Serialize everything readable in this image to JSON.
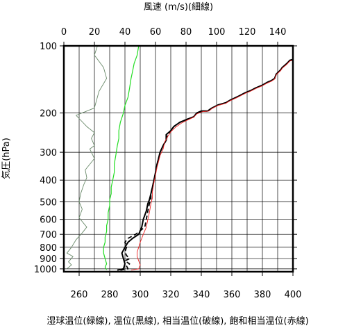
{
  "chart_data": {
    "type": "line",
    "title_top": "風速 (m/s)(細線)",
    "xlabel": "湿球温位(緑線), 温位(黒線), 相当温位(破線), 飽和相当温位(赤線)",
    "ylabel": "気圧(hPa)",
    "y_scale": "log",
    "ylim": [
      1030,
      100
    ],
    "y_ticks": [
      100,
      200,
      300,
      400,
      500,
      600,
      700,
      800,
      900,
      1000
    ],
    "x_theta_lim": [
      250,
      400
    ],
    "x_theta_ticks": [
      260,
      280,
      300,
      320,
      340,
      360,
      380,
      400
    ],
    "x_wind_lim": [
      0,
      150
    ],
    "x_wind_ticks": [
      0,
      20,
      40,
      60,
      80,
      100,
      120,
      140
    ],
    "grid": true,
    "series": [
      {
        "name": "風速",
        "axis": "wind",
        "color": "#6a8a6a",
        "style": "solid-thin",
        "points": [
          [
            2,
            1000
          ],
          [
            5,
            960
          ],
          [
            3,
            930
          ],
          [
            6,
            880
          ],
          [
            2,
            850
          ],
          [
            5,
            800
          ],
          [
            8,
            740
          ],
          [
            12,
            690
          ],
          [
            15,
            650
          ],
          [
            10,
            590
          ],
          [
            12,
            540
          ],
          [
            10,
            500
          ],
          [
            11,
            460
          ],
          [
            13,
            420
          ],
          [
            15,
            390
          ],
          [
            14,
            360
          ],
          [
            20,
            320
          ],
          [
            17,
            290
          ],
          [
            20,
            280
          ],
          [
            18,
            260
          ],
          [
            20,
            245
          ],
          [
            15,
            230
          ],
          [
            8,
            205
          ],
          [
            20,
            190
          ],
          [
            23,
            160
          ],
          [
            28,
            140
          ],
          [
            26,
            125
          ],
          [
            20,
            110
          ],
          [
            22,
            100
          ]
        ]
      },
      {
        "name": "湿球温位",
        "axis": "theta",
        "color": "#22dd22",
        "style": "solid",
        "points": [
          [
            278,
            1010
          ],
          [
            277,
            980
          ],
          [
            278,
            950
          ],
          [
            277,
            900
          ],
          [
            276,
            850
          ],
          [
            276,
            800
          ],
          [
            277,
            760
          ],
          [
            277,
            720
          ],
          [
            278,
            680
          ],
          [
            278,
            640
          ],
          [
            279,
            600
          ],
          [
            279,
            560
          ],
          [
            280,
            520
          ],
          [
            280,
            490
          ],
          [
            281,
            460
          ],
          [
            281,
            430
          ],
          [
            282,
            400
          ],
          [
            283,
            370
          ],
          [
            283,
            340
          ],
          [
            284,
            310
          ],
          [
            285,
            280
          ],
          [
            286,
            260
          ],
          [
            286,
            240
          ],
          [
            287,
            220
          ],
          [
            289,
            200
          ],
          [
            290,
            185
          ],
          [
            292,
            170
          ],
          [
            293,
            155
          ],
          [
            294,
            140
          ],
          [
            295,
            130
          ],
          [
            296,
            120
          ],
          [
            298,
            110
          ],
          [
            299,
            100
          ]
        ]
      },
      {
        "name": "温位",
        "axis": "theta",
        "color": "#000000",
        "style": "solid-thick",
        "points": [
          [
            285,
            1013
          ],
          [
            289,
            1000
          ],
          [
            290,
            950
          ],
          [
            289,
            900
          ],
          [
            288,
            850
          ],
          [
            290,
            800
          ],
          [
            292,
            760
          ],
          [
            295,
            730
          ],
          [
            299,
            700
          ],
          [
            301,
            650
          ],
          [
            302,
            600
          ],
          [
            304,
            550
          ],
          [
            305,
            510
          ],
          [
            306,
            490
          ],
          [
            307,
            460
          ],
          [
            308,
            430
          ],
          [
            309,
            400
          ],
          [
            310,
            370
          ],
          [
            311,
            340
          ],
          [
            312,
            320
          ],
          [
            313,
            300
          ],
          [
            315,
            280
          ],
          [
            317,
            265
          ],
          [
            317,
            250
          ],
          [
            320,
            240
          ],
          [
            322,
            230
          ],
          [
            326,
            220
          ],
          [
            331,
            213
          ],
          [
            335,
            208
          ],
          [
            337,
            200
          ],
          [
            340,
            196
          ],
          [
            344,
            196
          ],
          [
            347,
            190
          ],
          [
            351,
            184
          ],
          [
            356,
            180
          ],
          [
            359,
            175
          ],
          [
            363,
            170
          ],
          [
            366,
            166
          ],
          [
            369,
            162
          ],
          [
            372,
            159
          ],
          [
            376,
            154
          ],
          [
            380,
            150
          ],
          [
            383,
            146
          ],
          [
            386,
            143
          ],
          [
            388,
            140
          ],
          [
            389,
            134
          ],
          [
            392,
            128
          ],
          [
            393,
            125
          ],
          [
            396,
            120
          ],
          [
            398,
            116
          ],
          [
            400,
            115
          ]
        ]
      },
      {
        "name": "相当温位",
        "axis": "theta",
        "color": "#000000",
        "style": "dashed",
        "points": [
          [
            287,
            1013
          ],
          [
            292,
            1000
          ],
          [
            291,
            970
          ],
          [
            293,
            950
          ],
          [
            290,
            920
          ],
          [
            293,
            900
          ],
          [
            291,
            870
          ],
          [
            290,
            840
          ],
          [
            291,
            800
          ],
          [
            290,
            760
          ],
          [
            292,
            730
          ],
          [
            297,
            700
          ],
          [
            303,
            650
          ],
          [
            304,
            600
          ],
          [
            305,
            550
          ],
          [
            306,
            510
          ],
          [
            307,
            490
          ],
          [
            307,
            460
          ],
          [
            308,
            430
          ],
          [
            309,
            400
          ],
          [
            310,
            370
          ],
          [
            311,
            340
          ],
          [
            312,
            320
          ],
          [
            313,
            300
          ],
          [
            315,
            280
          ],
          [
            317,
            265
          ],
          [
            318,
            250
          ],
          [
            320,
            240
          ],
          [
            322,
            230
          ],
          [
            326,
            220
          ],
          [
            331,
            213
          ],
          [
            335,
            208
          ],
          [
            337,
            200
          ],
          [
            341,
            196
          ],
          [
            344,
            196
          ],
          [
            347,
            190
          ],
          [
            351,
            184
          ],
          [
            356,
            180
          ],
          [
            359,
            175
          ],
          [
            363,
            170
          ],
          [
            366,
            166
          ],
          [
            369,
            162
          ],
          [
            372,
            159
          ],
          [
            376,
            154
          ],
          [
            380,
            150
          ],
          [
            383,
            146
          ],
          [
            386,
            143
          ],
          [
            388,
            140
          ],
          [
            389,
            134
          ],
          [
            392,
            128
          ],
          [
            393,
            125
          ],
          [
            396,
            120
          ],
          [
            398,
            116
          ],
          [
            400,
            115
          ]
        ]
      },
      {
        "name": "飽和相当温位",
        "axis": "theta",
        "color": "#ee2222",
        "style": "solid-thin",
        "points": [
          [
            294,
            1013
          ],
          [
            299,
            1000
          ],
          [
            300,
            960
          ],
          [
            299,
            920
          ],
          [
            298,
            880
          ],
          [
            298,
            840
          ],
          [
            299,
            800
          ],
          [
            300,
            760
          ],
          [
            301,
            730
          ],
          [
            302,
            700
          ],
          [
            304,
            650
          ],
          [
            305,
            600
          ],
          [
            306,
            560
          ],
          [
            307,
            510
          ],
          [
            308,
            480
          ],
          [
            308,
            450
          ],
          [
            309,
            410
          ],
          [
            310,
            380
          ],
          [
            311,
            350
          ],
          [
            312,
            330
          ],
          [
            313,
            310
          ],
          [
            315,
            290
          ],
          [
            316,
            270
          ],
          [
            318,
            255
          ],
          [
            320,
            243
          ],
          [
            323,
            232
          ],
          [
            327,
            222
          ],
          [
            331,
            215
          ],
          [
            335,
            209
          ],
          [
            337,
            202
          ],
          [
            341,
            197
          ],
          [
            345,
            196
          ],
          [
            347,
            191
          ],
          [
            351,
            185
          ],
          [
            356,
            181
          ],
          [
            359,
            176
          ],
          [
            363,
            171
          ],
          [
            366,
            167
          ],
          [
            369,
            163
          ],
          [
            372,
            160
          ],
          [
            376,
            155
          ],
          [
            380,
            151
          ],
          [
            383,
            147
          ],
          [
            386,
            144
          ],
          [
            388,
            141
          ],
          [
            389,
            135
          ],
          [
            392,
            129
          ],
          [
            393,
            126
          ],
          [
            396,
            121
          ],
          [
            398,
            117
          ],
          [
            400,
            116
          ]
        ]
      }
    ]
  }
}
